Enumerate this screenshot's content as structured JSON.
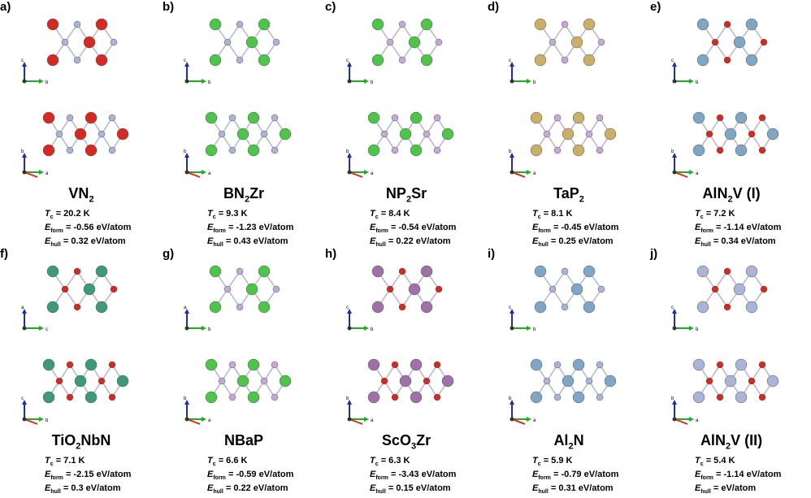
{
  "panels": [
    {
      "letter": "a)",
      "formula": "VN",
      "formula_sub": "2",
      "formula_tail": "",
      "tc": "= 20.2 K",
      "eform": "= -0.56 eV/atom",
      "ehull": "= 0.32 eV/atom",
      "atoms": [
        "red",
        "slate"
      ],
      "top_axes": [
        "c",
        "b"
      ],
      "bot_axes": [
        "b",
        "a"
      ]
    },
    {
      "letter": "b)",
      "formula": "BN",
      "formula_sub": "2",
      "formula_tail": "Zr",
      "tc": "= 9.3 K",
      "eform": "= -1.23 eV/atom",
      "ehull": "= 0.43 eV/atom",
      "atoms": [
        "green",
        "slate"
      ],
      "top_axes": [
        "c",
        "b"
      ],
      "bot_axes": [
        "b",
        "a"
      ]
    },
    {
      "letter": "c)",
      "formula": "NP",
      "formula_sub": "2",
      "formula_tail": "Sr",
      "tc": "= 8.4 K",
      "eform": "= -0.54 eV/atom",
      "ehull": "= 0.22 eV/atom",
      "atoms": [
        "green",
        "lilac"
      ],
      "top_axes": [
        "c",
        "b"
      ],
      "bot_axes": [
        "b",
        "a"
      ]
    },
    {
      "letter": "d)",
      "formula": "TaP",
      "formula_sub": "2",
      "formula_tail": "",
      "tc": "= 8.1 K",
      "eform": "= -0.45 eV/atom",
      "ehull": "= 0.25 eV/atom",
      "atoms": [
        "tan",
        "lilac"
      ],
      "top_axes": [
        "c",
        "b"
      ],
      "bot_axes": [
        "b",
        "a"
      ]
    },
    {
      "letter": "e)",
      "formula": "AlN",
      "formula_sub": "2",
      "formula_tail": "V (I)",
      "tc": "= 7.2 K",
      "eform": "= -1.14 eV/atom",
      "ehull": "= 0.34 eV/atom",
      "atoms": [
        "blue",
        "red"
      ],
      "top_axes": [
        "c",
        "b"
      ],
      "bot_axes": [
        "b",
        "a"
      ]
    },
    {
      "letter": "f)",
      "formula": "TiO",
      "formula_sub": "2",
      "formula_tail": "NbN",
      "tc": "= 7.1 K",
      "eform": "= -2.15 eV/atom",
      "ehull": "= 0.3 eV/atom",
      "atoms": [
        "teal",
        "red"
      ],
      "top_axes": [
        "a",
        "c"
      ],
      "bot_axes": [
        "c",
        "b"
      ]
    },
    {
      "letter": "g)",
      "formula": "NBaP",
      "formula_sub": "",
      "formula_tail": "",
      "tc": "= 6.6 K",
      "eform": "= -0.59 eV/atom",
      "ehull": "= 0.22 eV/atom",
      "atoms": [
        "green",
        "lilac"
      ],
      "top_axes": [
        "a",
        "b"
      ],
      "bot_axes": [
        "b",
        "a"
      ]
    },
    {
      "letter": "h)",
      "formula": "ScO",
      "formula_sub": "3",
      "formula_tail": "Zr",
      "tc": "= 6.3 K",
      "eform": "= -3.43 eV/atom",
      "ehull": "= 0.15 eV/atom",
      "atoms": [
        "purple",
        "red"
      ],
      "top_axes": [
        "c",
        "b"
      ],
      "bot_axes": [
        "b",
        "a"
      ]
    },
    {
      "letter": "i)",
      "formula": "Al",
      "formula_sub": "2",
      "formula_tail": "N",
      "tc": "= 5.9 K",
      "eform": "= -0.79 eV/atom",
      "ehull": "= 0.31 eV/atom",
      "atoms": [
        "blue",
        "slate"
      ],
      "top_axes": [
        "c",
        "b"
      ],
      "bot_axes": [
        "b",
        "a"
      ]
    },
    {
      "letter": "j)",
      "formula": "AlN",
      "formula_sub": "2",
      "formula_tail": "V (II)",
      "tc": "= 5.4 K",
      "eform": "= -1.14 eV/atom",
      "ehull": "= eV/atom",
      "atoms": [
        "slate",
        "red"
      ],
      "top_axes": [
        "c",
        "b"
      ],
      "bot_axes": [
        "b",
        "a"
      ]
    }
  ],
  "labels": {
    "tc_sub": "c",
    "eform_sub": "form",
    "ehull_sub": "hull",
    "E": "E",
    "T": "T"
  },
  "colors": {
    "red": "#d42a22",
    "slate": "#a9b4d6",
    "green": "#4ec44a",
    "lilac": "#c6a8d6",
    "tan": "#c9b06a",
    "blue": "#7fa6c4",
    "teal": "#3d9a78",
    "purple": "#a070a8",
    "axis_red": "#e0261c",
    "axis_green": "#22aa22",
    "axis_blue": "#1e2fa8"
  }
}
